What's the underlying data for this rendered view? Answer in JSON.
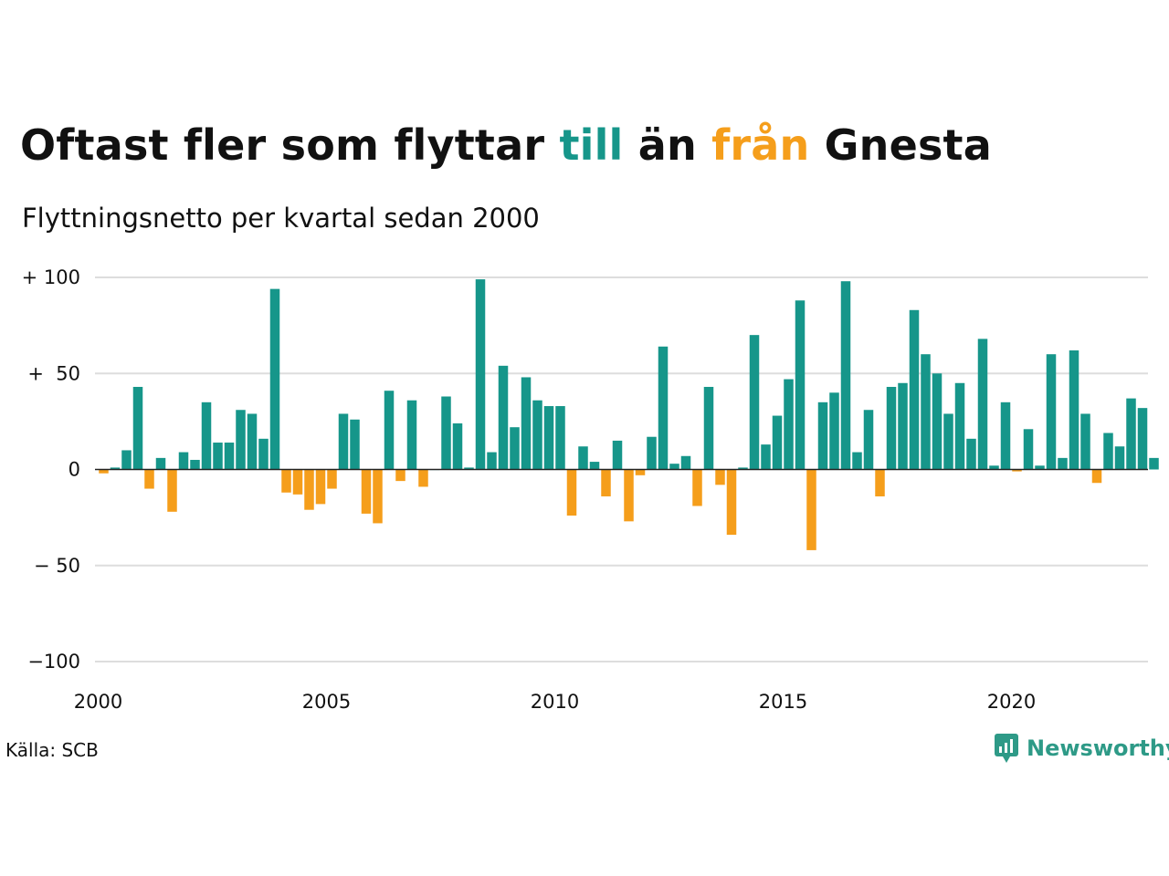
{
  "title": {
    "part1": "Oftast fler som flyttar ",
    "pos_word": "till",
    "part2": " än ",
    "neg_word": "från",
    "part3": " Gnesta"
  },
  "subtitle": "Flyttningsnetto per kvartal sedan 2000",
  "source": "Källa: SCB",
  "brand": "Newsworthy",
  "colors": {
    "positive": "#16968a",
    "negative": "#f59e1b",
    "grid": "#dddddd",
    "axis": "#222222"
  },
  "chart_data": {
    "type": "bar",
    "title": "Oftast fler som flyttar till än från Gnesta",
    "subtitle": "Flyttningsnetto per kvartal sedan 2000",
    "ylim": [
      -100,
      100
    ],
    "y_ticks": [
      100,
      50,
      0,
      -50,
      -100
    ],
    "y_tick_labels": [
      "+ 100",
      "+  50",
      "0",
      "− 50",
      "−100"
    ],
    "x_ticks": [
      "2000",
      "2005",
      "2010",
      "2015",
      "2020"
    ],
    "grid": "horizontal",
    "categories": [
      "2000Q1",
      "2000Q2",
      "2000Q3",
      "2000Q4",
      "2001Q1",
      "2001Q2",
      "2001Q3",
      "2001Q4",
      "2002Q1",
      "2002Q2",
      "2002Q3",
      "2002Q4",
      "2003Q1",
      "2003Q2",
      "2003Q3",
      "2003Q4",
      "2004Q1",
      "2004Q2",
      "2004Q3",
      "2004Q4",
      "2005Q1",
      "2005Q2",
      "2005Q3",
      "2005Q4",
      "2006Q1",
      "2006Q2",
      "2006Q3",
      "2006Q4",
      "2007Q1",
      "2007Q2",
      "2007Q3",
      "2007Q4",
      "2008Q1",
      "2008Q2",
      "2008Q3",
      "2008Q4",
      "2009Q1",
      "2009Q2",
      "2009Q3",
      "2009Q4",
      "2010Q1",
      "2010Q2",
      "2010Q3",
      "2010Q4",
      "2011Q1",
      "2011Q2",
      "2011Q3",
      "2011Q4",
      "2012Q1",
      "2012Q2",
      "2012Q3",
      "2012Q4",
      "2013Q1",
      "2013Q2",
      "2013Q3",
      "2013Q4",
      "2014Q1",
      "2014Q2",
      "2014Q3",
      "2014Q4",
      "2015Q1",
      "2015Q2",
      "2015Q3",
      "2015Q4",
      "2016Q1",
      "2016Q2",
      "2016Q3",
      "2016Q4",
      "2017Q1",
      "2017Q2",
      "2017Q3",
      "2017Q4",
      "2018Q1",
      "2018Q2",
      "2018Q3",
      "2018Q4",
      "2019Q1",
      "2019Q2",
      "2019Q3",
      "2019Q4",
      "2020Q1",
      "2020Q2",
      "2020Q3",
      "2020Q4",
      "2021Q1",
      "2021Q2",
      "2021Q3",
      "2021Q4",
      "2022Q1",
      "2022Q2",
      "2022Q3",
      "2022Q4",
      "2023Q1"
    ],
    "values": [
      -2,
      1,
      10,
      43,
      -10,
      6,
      -22,
      9,
      5,
      35,
      14,
      14,
      31,
      29,
      16,
      94,
      -12,
      -13,
      -21,
      -18,
      -10,
      29,
      26,
      -23,
      -28,
      41,
      -6,
      36,
      -9,
      0,
      38,
      24,
      1,
      99,
      9,
      54,
      22,
      48,
      36,
      33,
      33,
      -24,
      12,
      4,
      -14,
      15,
      -27,
      -3,
      17,
      64,
      3,
      7,
      -19,
      43,
      -8,
      -34,
      1,
      70,
      13,
      28,
      47,
      88,
      -42,
      35,
      40,
      98,
      9,
      31,
      -14,
      43,
      45,
      83,
      60,
      50,
      29,
      45,
      16,
      68,
      2,
      35,
      -1,
      21,
      2,
      60,
      6,
      62,
      29,
      -7,
      19,
      12,
      37,
      32,
      6
    ]
  }
}
